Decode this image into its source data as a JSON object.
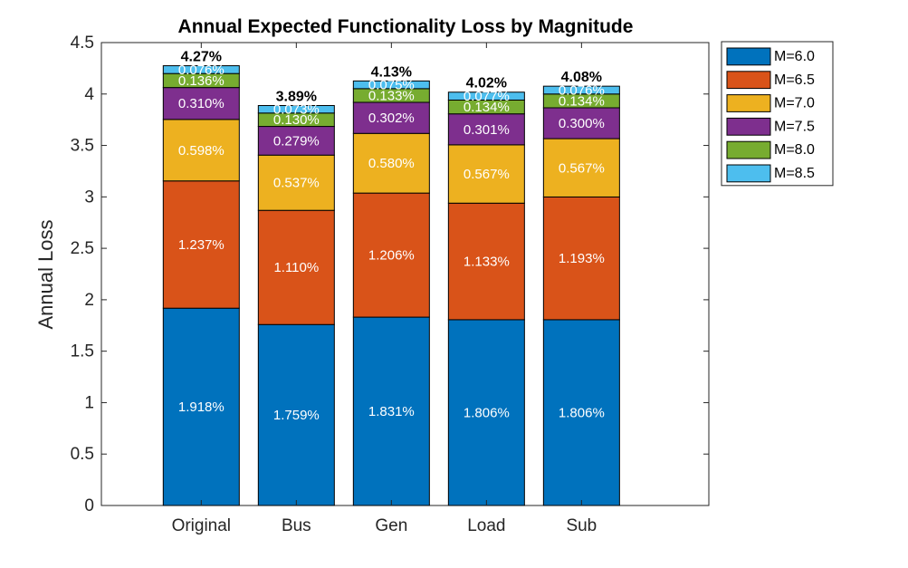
{
  "chart_data": {
    "type": "bar",
    "stacked": true,
    "title": "Annual Expected Functionality Loss by Magnitude",
    "xlabel": "",
    "ylabel": "Annual Loss",
    "ylim": [
      0,
      4.5
    ],
    "yticks": [
      0,
      0.5,
      1,
      1.5,
      2,
      2.5,
      3,
      3.5,
      4,
      4.5
    ],
    "ytick_labels": [
      "0",
      "0.5",
      "1",
      "1.5",
      "2",
      "2.5",
      "3",
      "3.5",
      "4",
      "4.5"
    ],
    "grid": false,
    "legend_position": "outside-top-right",
    "categories": [
      "Original",
      "Bus",
      "Gen",
      "Load",
      "Sub"
    ],
    "series": [
      {
        "name": "M=6.0",
        "color": "#0072BD",
        "values": [
          1.918,
          1.759,
          1.831,
          1.806,
          1.806
        ],
        "labels": [
          "1.918%",
          "1.759%",
          "1.831%",
          "1.806%",
          "1.806%"
        ]
      },
      {
        "name": "M=6.5",
        "color": "#D95319",
        "values": [
          1.237,
          1.11,
          1.206,
          1.133,
          1.193
        ],
        "labels": [
          "1.237%",
          "1.110%",
          "1.206%",
          "1.133%",
          "1.193%"
        ]
      },
      {
        "name": "M=7.0",
        "color": "#EDB120",
        "values": [
          0.598,
          0.537,
          0.58,
          0.567,
          0.567
        ],
        "labels": [
          "0.598%",
          "0.537%",
          "0.580%",
          "0.567%",
          "0.567%"
        ]
      },
      {
        "name": "M=7.5",
        "color": "#7E2F8E",
        "values": [
          0.31,
          0.279,
          0.302,
          0.301,
          0.3
        ],
        "labels": [
          "0.310%",
          "0.279%",
          "0.302%",
          "0.301%",
          "0.300%"
        ]
      },
      {
        "name": "M=8.0",
        "color": "#77AC30",
        "values": [
          0.136,
          0.13,
          0.133,
          0.134,
          0.134
        ],
        "labels": [
          "0.136%",
          "0.130%",
          "0.133%",
          "0.134%",
          "0.134%"
        ]
      },
      {
        "name": "M=8.5",
        "color": "#4DBEEE",
        "values": [
          0.076,
          0.073,
          0.075,
          0.077,
          0.076
        ],
        "labels": [
          "0.076%",
          "0.073%",
          "0.075%",
          "0.077%",
          "0.076%"
        ]
      }
    ],
    "totals": [
      "4.27%",
      "3.89%",
      "4.13%",
      "4.02%",
      "4.08%"
    ]
  }
}
